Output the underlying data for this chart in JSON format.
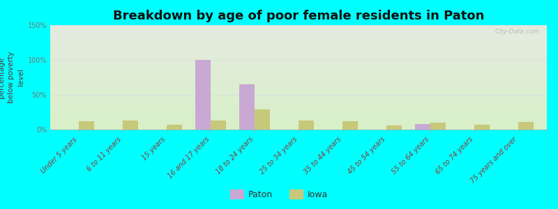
{
  "title": "Breakdown by age of poor female residents in Paton",
  "ylabel": "percentage\nbelow poverty\nlevel",
  "categories": [
    "Under 5 years",
    "6 to 11 years",
    "15 years",
    "16 and 17 years",
    "18 to 24 years",
    "25 to 34 years",
    "35 to 44 years",
    "45 to 54 years",
    "55 to 64 years",
    "65 to 74 years",
    "75 years and over"
  ],
  "paton_values": [
    0,
    0,
    0,
    100,
    65,
    0,
    0,
    0,
    8,
    0,
    0
  ],
  "iowa_values": [
    12,
    13,
    7,
    13,
    29,
    13,
    12,
    6,
    10,
    7,
    11
  ],
  "ylim": [
    0,
    150
  ],
  "yticks": [
    0,
    50,
    100,
    150
  ],
  "ytick_labels": [
    "0%",
    "50%",
    "100%",
    "150%"
  ],
  "paton_color": "#c9a8d4",
  "iowa_color": "#c8c87a",
  "background_color": "#00ffff",
  "plot_bg_top": "#e4ebe0",
  "plot_bg_bottom": "#d8f0c8",
  "bar_width": 0.35,
  "legend_labels": [
    "Paton",
    "Iowa"
  ],
  "watermark": "City-Data.com",
  "title_fontsize": 13,
  "axis_label_fontsize": 7.5,
  "tick_fontsize": 7,
  "xlim_left": -0.65,
  "xlim_right": 10.65
}
